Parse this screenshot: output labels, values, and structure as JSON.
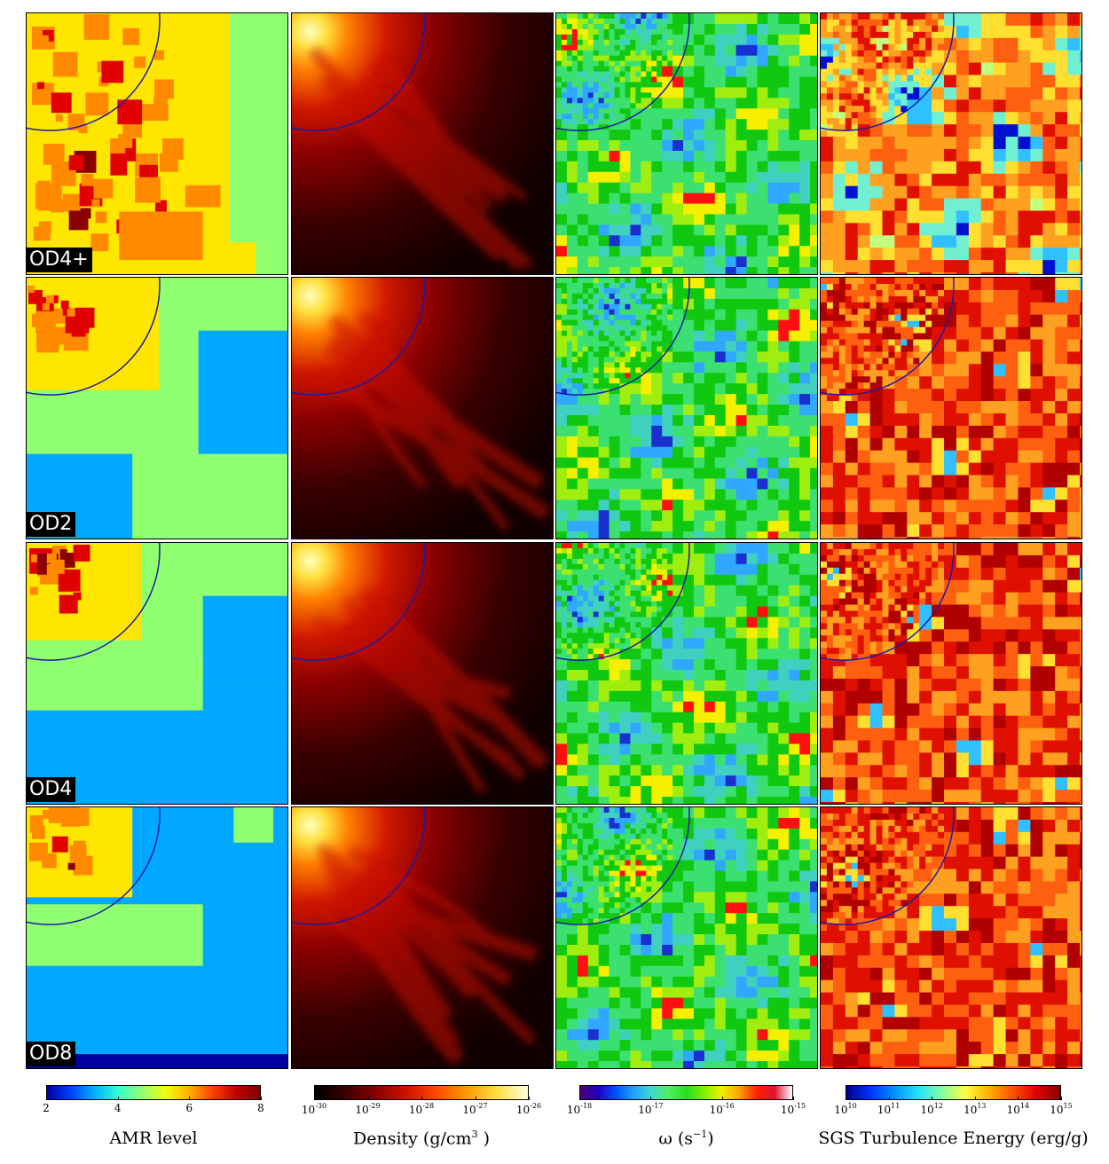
{
  "rows": [
    {
      "label": "OD4+"
    },
    {
      "label": "OD2"
    },
    {
      "label": "OD4"
    },
    {
      "label": "OD8"
    }
  ],
  "columns": [
    {
      "field": "amr"
    },
    {
      "field": "density"
    },
    {
      "field": "vorticity"
    },
    {
      "field": "sgs"
    }
  ],
  "colorbars": [
    {
      "title_html": "AMR level",
      "ticks": [
        "2",
        "4",
        "6",
        "8"
      ],
      "tick_html": [
        "2",
        "4",
        "6",
        "8"
      ],
      "gradient": "linear-gradient(to right,#0000a8,#0040ff,#00b0ff,#30ffd0,#90ff70,#f0ff10,#ffb000,#ff4000,#c00000,#800000)"
    },
    {
      "title_html": "Density (g/cm<sup>3</sup> )",
      "ticks": [
        "10^-30",
        "10^-29",
        "10^-28",
        "10^-27",
        "10^-26"
      ],
      "tick_html": [
        "10<sup>-30</sup>",
        "10<sup>-29</sup>",
        "10<sup>-28</sup>",
        "10<sup>-27</sup>",
        "10<sup>-26</sup>"
      ],
      "gradient": "linear-gradient(to right,#000000,#3a0000,#8a0000,#d01000,#ff4a00,#ff9a00,#ffe040,#ffffe0)"
    },
    {
      "title_html": "&omega; (s<sup>&minus;1</sup>)",
      "ticks": [
        "10^-18",
        "10^-17",
        "10^-16",
        "10^-15"
      ],
      "tick_html": [
        "10<sup>-18</sup>",
        "10<sup>-17</sup>",
        "10<sup>-16</sup>",
        "10<sup>-15</sup>"
      ],
      "gradient": "linear-gradient(to right,#4a0070,#2000c0,#0050ff,#20a0ff,#40d8d0,#50f060,#20e020,#80f000,#f0f000,#ffa000,#ff2000,#e01030,#ffffff)"
    },
    {
      "title_html": "SGS Turbulence Energy (erg/g)",
      "ticks": [
        "10^10",
        "10^11",
        "10^12",
        "10^13",
        "10^14",
        "10^15"
      ],
      "tick_html": [
        "10<sup>10</sup>",
        "10<sup>11</sup>",
        "10<sup>12</sup>",
        "10<sup>13</sup>",
        "10<sup>14</sup>",
        "10<sup>15</sup>"
      ],
      "gradient": "linear-gradient(to right,#00008a,#0030ff,#0090ff,#20e0ff,#80ffa0,#ffff40,#ffb000,#ff5000,#e00000,#8a0000)"
    }
  ],
  "circle_color": "#1a1aa8"
}
